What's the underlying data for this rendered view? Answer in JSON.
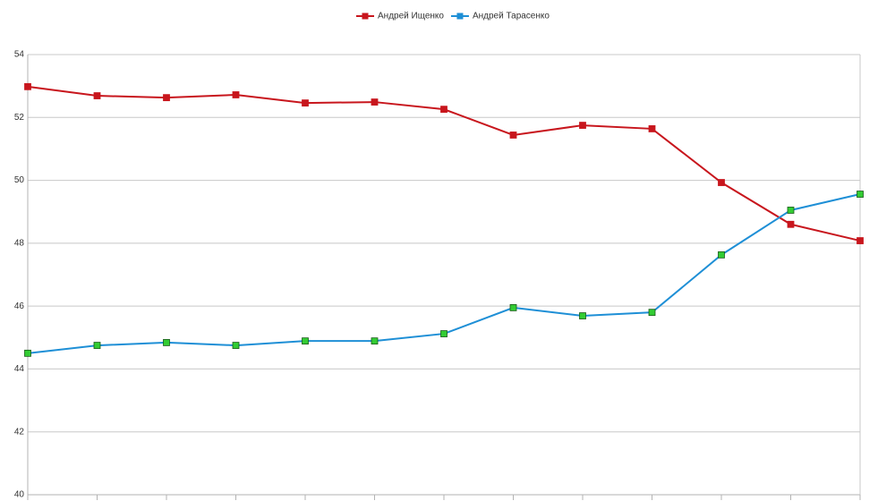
{
  "chart_data": {
    "type": "line",
    "categories": [
      null,
      null,
      null,
      null,
      null,
      null,
      null,
      null,
      null,
      null,
      null,
      null,
      null
    ],
    "series": [
      {
        "name": "Андрей Ищенко",
        "color": "#c8161d",
        "marker_color": "#c8161d",
        "marker": "square",
        "values": [
          52.98,
          52.69,
          52.63,
          52.72,
          52.46,
          52.49,
          52.26,
          51.44,
          51.75,
          51.64,
          49.93,
          48.6,
          48.08
        ]
      },
      {
        "name": "Андрей Тарасенко",
        "color": "#1e8fd6",
        "marker_color": "#33cc33",
        "marker": "square",
        "values": [
          44.5,
          44.75,
          44.84,
          44.75,
          44.89,
          44.89,
          45.12,
          45.95,
          45.69,
          45.8,
          47.63,
          49.05,
          49.56
        ]
      }
    ],
    "ylim": [
      40,
      54
    ],
    "yticks": [
      40,
      42,
      44,
      46,
      48,
      50,
      52,
      54
    ],
    "grid": true,
    "legend": "top"
  }
}
